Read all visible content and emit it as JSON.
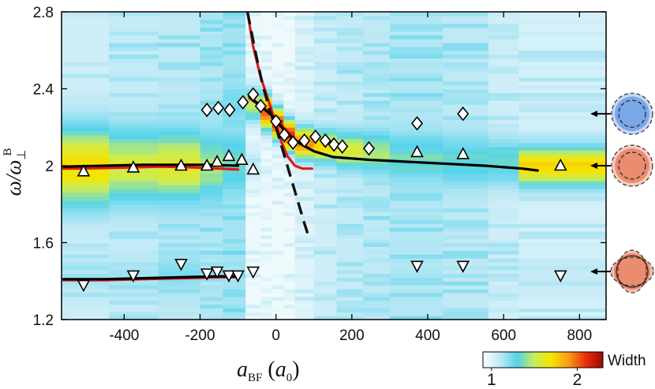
{
  "chart_data": {
    "type": "heatmap",
    "xlabel_main": "a",
    "xlabel_sub": "BF",
    "xlabel_unit_open": " (",
    "xlabel_unit_main": "a",
    "xlabel_unit_sub": "0",
    "xlabel_unit_close": ")",
    "ylabel_main": "ω/ω",
    "ylabel_sub": "⊥",
    "ylabel_sup": "B",
    "xlim": [
      -565,
      870
    ],
    "ylim": [
      1.2,
      2.8
    ],
    "xticks": [
      -400,
      -200,
      0,
      200,
      400,
      600,
      800
    ],
    "xtick_labels": [
      "-400",
      "-200",
      "0",
      "200",
      "400",
      "600",
      "800"
    ],
    "yticks": [
      1.2,
      1.6,
      2.0,
      2.4,
      2.8
    ],
    "ytick_labels": [
      "1.2",
      "1.6",
      "2",
      "2.4",
      "2.8"
    ],
    "colorbar": {
      "label": "Width",
      "tick_values": [
        1,
        2
      ],
      "tick_labels": [
        "1",
        "2"
      ],
      "range": [
        0.9,
        2.3
      ],
      "colors": [
        "#ffffff",
        "#bfe9f5",
        "#55d3ea",
        "#c8ed5a",
        "#f6e400",
        "#fb9a14",
        "#e82e0c",
        "#9a0a03"
      ]
    },
    "heatmap_columns": [
      {
        "x": [
          -565,
          -440
        ],
        "modes": [
          {
            "y": 2.0,
            "w": 0.2,
            "peak": 1.7
          },
          {
            "y": 1.42,
            "w": 0.12,
            "peak": 1.15
          }
        ],
        "bg": 1.05
      },
      {
        "x": [
          -440,
          -310
        ],
        "modes": [
          {
            "y": 2.0,
            "w": 0.18,
            "peak": 1.55
          },
          {
            "y": 1.43,
            "w": 0.1,
            "peak": 1.15
          }
        ],
        "bg": 1.08
      },
      {
        "x": [
          -310,
          -200
        ],
        "modes": [
          {
            "y": 2.0,
            "w": 0.17,
            "peak": 1.6
          },
          {
            "y": 1.44,
            "w": 0.1,
            "peak": 1.2
          }
        ],
        "bg": 1.1
      },
      {
        "x": [
          -200,
          -140
        ],
        "modes": [
          {
            "y": 2.0,
            "w": 0.16,
            "peak": 1.45
          },
          {
            "y": 2.28,
            "w": 0.1,
            "peak": 1.15
          },
          {
            "y": 1.45,
            "w": 0.1,
            "peak": 1.15
          }
        ],
        "bg": 1.12
      },
      {
        "x": [
          -140,
          -80
        ],
        "modes": [
          {
            "y": 2.02,
            "w": 0.14,
            "peak": 1.35
          },
          {
            "y": 2.3,
            "w": 0.1,
            "peak": 1.25
          },
          {
            "y": 1.45,
            "w": 0.1,
            "peak": 1.15
          }
        ],
        "bg": 1.15
      },
      {
        "x": [
          -80,
          -40
        ],
        "modes": [
          {
            "y": 2.32,
            "w": 0.09,
            "peak": 1.5
          },
          {
            "y": 2.02,
            "w": 0.1,
            "peak": 1.1
          }
        ],
        "bg": 0.95
      },
      {
        "x": [
          -40,
          -10
        ],
        "modes": [
          {
            "y": 2.28,
            "w": 0.09,
            "peak": 2.0
          }
        ],
        "bg": 0.95
      },
      {
        "x": [
          -10,
          20
        ],
        "modes": [
          {
            "y": 2.22,
            "w": 0.08,
            "peak": 2.1
          }
        ],
        "bg": 0.95
      },
      {
        "x": [
          20,
          50
        ],
        "modes": [
          {
            "y": 2.16,
            "w": 0.08,
            "peak": 2.1
          }
        ],
        "bg": 0.95
      },
      {
        "x": [
          50,
          100
        ],
        "modes": [
          {
            "y": 2.12,
            "w": 0.08,
            "peak": 1.9
          }
        ],
        "bg": 1.0
      },
      {
        "x": [
          100,
          160
        ],
        "modes": [
          {
            "y": 2.1,
            "w": 0.08,
            "peak": 1.7
          }
        ],
        "bg": 1.05
      },
      {
        "x": [
          160,
          230
        ],
        "modes": [
          {
            "y": 2.08,
            "w": 0.09,
            "peak": 1.55
          }
        ],
        "bg": 1.08
      },
      {
        "x": [
          230,
          300
        ],
        "modes": [
          {
            "y": 2.07,
            "w": 0.1,
            "peak": 1.45
          }
        ],
        "bg": 1.1
      },
      {
        "x": [
          300,
          440
        ],
        "modes": [
          {
            "y": 2.04,
            "w": 0.12,
            "peak": 1.35
          },
          {
            "y": 1.47,
            "w": 0.1,
            "peak": 1.1
          }
        ],
        "bg": 1.12
      },
      {
        "x": [
          440,
          560
        ],
        "modes": [
          {
            "y": 2.03,
            "w": 0.12,
            "peak": 1.35
          },
          {
            "y": 1.47,
            "w": 0.1,
            "peak": 1.1
          }
        ],
        "bg": 1.1
      },
      {
        "x": [
          560,
          640
        ],
        "modes": [
          {
            "y": 2.02,
            "w": 0.12,
            "peak": 1.35
          }
        ],
        "bg": 1.05
      },
      {
        "x": [
          640,
          870
        ],
        "modes": [
          {
            "y": 2.0,
            "w": 0.1,
            "peak": 1.75
          },
          {
            "y": 1.42,
            "w": 0.1,
            "peak": 1.1
          }
        ],
        "bg": 1.03
      }
    ],
    "series": [
      {
        "marker": "diamond",
        "points": [
          [
            -182,
            2.29
          ],
          [
            -152,
            2.3
          ],
          [
            -122,
            2.29
          ],
          [
            -87,
            2.33
          ],
          [
            -60,
            2.37
          ],
          [
            -40,
            2.31
          ],
          [
            0,
            2.23
          ],
          [
            22,
            2.16
          ],
          [
            45,
            2.12
          ],
          [
            75,
            2.13
          ],
          [
            104,
            2.15
          ],
          [
            130,
            2.13
          ],
          [
            153,
            2.11
          ],
          [
            175,
            2.1
          ],
          [
            245,
            2.09
          ],
          [
            372,
            2.22
          ],
          [
            493,
            2.27
          ]
        ]
      },
      {
        "marker": "triangle-up",
        "points": [
          [
            -507,
            1.97
          ],
          [
            -376,
            1.99
          ],
          [
            -250,
            2.0
          ],
          [
            -182,
            2.0
          ],
          [
            -155,
            2.02
          ],
          [
            -124,
            2.05
          ],
          [
            -90,
            2.03
          ],
          [
            -60,
            1.98
          ],
          [
            372,
            2.07
          ],
          [
            493,
            2.06
          ],
          [
            750,
            2.0
          ]
        ]
      },
      {
        "marker": "triangle-down",
        "points": [
          [
            -507,
            1.38
          ],
          [
            -376,
            1.43
          ],
          [
            -250,
            1.49
          ],
          [
            -182,
            1.44
          ],
          [
            -155,
            1.45
          ],
          [
            -124,
            1.43
          ],
          [
            -100,
            1.43
          ],
          [
            -60,
            1.45
          ],
          [
            372,
            1.48
          ],
          [
            493,
            1.48
          ],
          [
            750,
            1.43
          ]
        ]
      }
    ],
    "lines": [
      {
        "color": "#e21818",
        "width": 3.2,
        "dash": "",
        "points": [
          [
            -560,
            1.985
          ],
          [
            -500,
            1.986
          ],
          [
            -400,
            1.99
          ],
          [
            -300,
            1.995
          ],
          [
            -200,
            1.99
          ],
          [
            -100,
            1.98
          ]
        ]
      },
      {
        "color": "#000000",
        "width": 3.2,
        "dash": "",
        "points": [
          [
            -560,
            1.995
          ],
          [
            -450,
            2.0
          ],
          [
            -350,
            2.005
          ],
          [
            -250,
            2.005
          ],
          [
            -180,
            2.005
          ],
          [
            -100,
            2.0
          ]
        ]
      },
      {
        "color": "#e21818",
        "width": 3.2,
        "dash": "",
        "points": [
          [
            -560,
            1.405
          ],
          [
            -450,
            1.405
          ],
          [
            -350,
            1.41
          ],
          [
            -250,
            1.415
          ],
          [
            -150,
            1.42
          ],
          [
            -100,
            1.42
          ]
        ]
      },
      {
        "color": "#000000",
        "width": 3.2,
        "dash": "",
        "points": [
          [
            -560,
            1.41
          ],
          [
            -450,
            1.41
          ],
          [
            -350,
            1.415
          ],
          [
            -250,
            1.42
          ],
          [
            -150,
            1.425
          ],
          [
            -100,
            1.425
          ]
        ]
      },
      {
        "color": "#e21818",
        "width": 3.2,
        "dash": "",
        "points": [
          [
            -75,
            2.8
          ],
          [
            -60,
            2.62
          ],
          [
            -40,
            2.46
          ],
          [
            -20,
            2.34
          ],
          [
            0,
            2.22
          ],
          [
            15,
            2.12
          ],
          [
            30,
            2.05
          ],
          [
            50,
            2.0
          ],
          [
            70,
            1.985
          ],
          [
            95,
            1.985
          ]
        ]
      },
      {
        "color": "#e21818",
        "width": 3.2,
        "dash": "",
        "points": [
          [
            -70,
            2.35
          ],
          [
            -40,
            2.31
          ],
          [
            -20,
            2.28
          ],
          [
            0,
            2.24
          ],
          [
            20,
            2.2
          ],
          [
            40,
            2.16
          ],
          [
            60,
            2.12
          ]
        ]
      },
      {
        "color": "#000000",
        "width": 3.2,
        "dash": "",
        "points": [
          [
            -70,
            2.36
          ],
          [
            -40,
            2.31
          ],
          [
            -10,
            2.26
          ],
          [
            20,
            2.19
          ],
          [
            50,
            2.13
          ],
          [
            100,
            2.075
          ],
          [
            150,
            2.045
          ],
          [
            250,
            2.03
          ],
          [
            400,
            2.015
          ],
          [
            550,
            2.0
          ],
          [
            650,
            1.985
          ],
          [
            690,
            1.975
          ]
        ]
      },
      {
        "color": "#111111",
        "width": 3.4,
        "dash": "16 9",
        "points": [
          [
            -75,
            2.8
          ],
          [
            -55,
            2.6
          ],
          [
            -35,
            2.42
          ],
          [
            -15,
            2.28
          ],
          [
            0,
            2.2
          ],
          [
            15,
            2.1
          ],
          [
            30,
            2.0
          ],
          [
            45,
            1.9
          ],
          [
            60,
            1.8
          ],
          [
            75,
            1.7
          ],
          [
            85,
            1.64
          ]
        ]
      }
    ],
    "arrows_y": [
      2.27,
      2.0,
      1.45
    ],
    "mode_icons": [
      {
        "y": 2.27,
        "fill": "#7aa7e6",
        "shape": "circle"
      },
      {
        "y": 2.0,
        "fill": "#eb8c6f",
        "shape": "circle"
      },
      {
        "y": 1.45,
        "fill": "#eb8c6f",
        "shape": "quad"
      }
    ]
  }
}
